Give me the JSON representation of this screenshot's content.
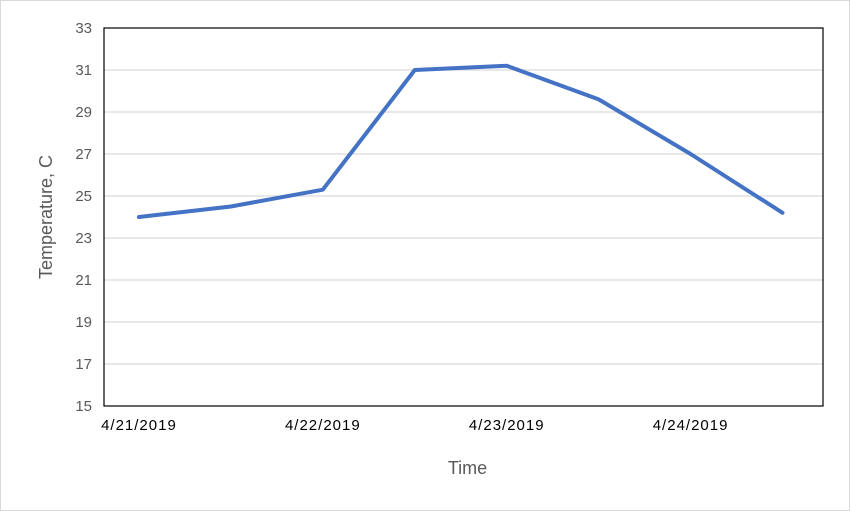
{
  "chart_data": {
    "type": "line",
    "title": "",
    "xlabel": "Time",
    "ylabel": "Temperature, C",
    "ylim": [
      15,
      33
    ],
    "y_ticks": [
      "15",
      "17",
      "19",
      "21",
      "23",
      "25",
      "27",
      "29",
      "31",
      "33"
    ],
    "x_tick_labels": [
      "4/21/2019",
      "4/22/2019",
      "4/23/2019",
      "4/24/2019"
    ],
    "grid": "horizontal",
    "legend": "none",
    "colors": {
      "line": "#4472c4",
      "grid": "#d9d9d9",
      "axis": "#000000"
    },
    "series": [
      {
        "x": [
          "4/21/2019 00:00",
          "4/21/2019 12:00",
          "4/22/2019 00:00",
          "4/22/2019 12:00",
          "4/23/2019 00:00",
          "4/23/2019 12:00",
          "4/24/2019 00:00",
          "4/24/2019 12:00"
        ],
        "values": [
          24.0,
          24.5,
          25.3,
          31.0,
          31.2,
          29.6,
          27.0,
          24.2
        ]
      }
    ]
  }
}
